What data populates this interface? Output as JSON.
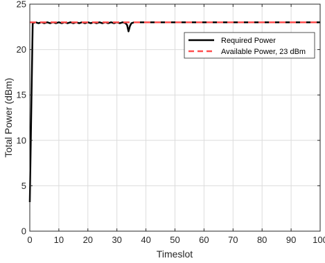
{
  "chart_data": {
    "type": "line",
    "xlabel": "Timeslot",
    "ylabel": "Total Power (dBm)",
    "xlim": [
      0,
      100
    ],
    "ylim": [
      0,
      25
    ],
    "xticks": [
      0,
      10,
      20,
      30,
      40,
      50,
      60,
      70,
      80,
      90,
      100
    ],
    "yticks": [
      0,
      5,
      10,
      15,
      20,
      25
    ],
    "grid": true,
    "legend_position": "top-right",
    "series": [
      {
        "name": "Required Power",
        "color": "#000000",
        "style": "solid",
        "x": [
          0,
          1,
          2,
          3,
          4,
          5,
          6,
          7,
          8,
          9,
          10,
          11,
          12,
          13,
          14,
          15,
          16,
          17,
          18,
          19,
          20,
          21,
          22,
          23,
          24,
          25,
          26,
          27,
          28,
          29,
          30,
          31,
          32,
          33,
          33.5,
          34,
          34.5,
          35,
          36,
          40,
          50,
          60,
          70,
          80,
          90,
          100
        ],
        "y": [
          3.2,
          22.9,
          23.0,
          22.9,
          23.0,
          22.9,
          23.0,
          22.9,
          23.0,
          22.9,
          23.0,
          22.9,
          23.0,
          22.9,
          23.0,
          22.9,
          23.0,
          22.9,
          23.0,
          22.9,
          23.0,
          22.9,
          23.0,
          22.9,
          23.0,
          22.9,
          23.0,
          22.9,
          23.0,
          22.9,
          23.0,
          22.9,
          23.0,
          22.9,
          22.7,
          22.0,
          22.6,
          22.9,
          23.0,
          23.0,
          23.0,
          23.0,
          23.0,
          23.0,
          23.0,
          23.0
        ]
      },
      {
        "name": "Available Power, 23 dBm",
        "color": "#ff4d4d",
        "style": "dashed",
        "x": [
          0,
          100
        ],
        "y": [
          23,
          23
        ]
      }
    ]
  }
}
